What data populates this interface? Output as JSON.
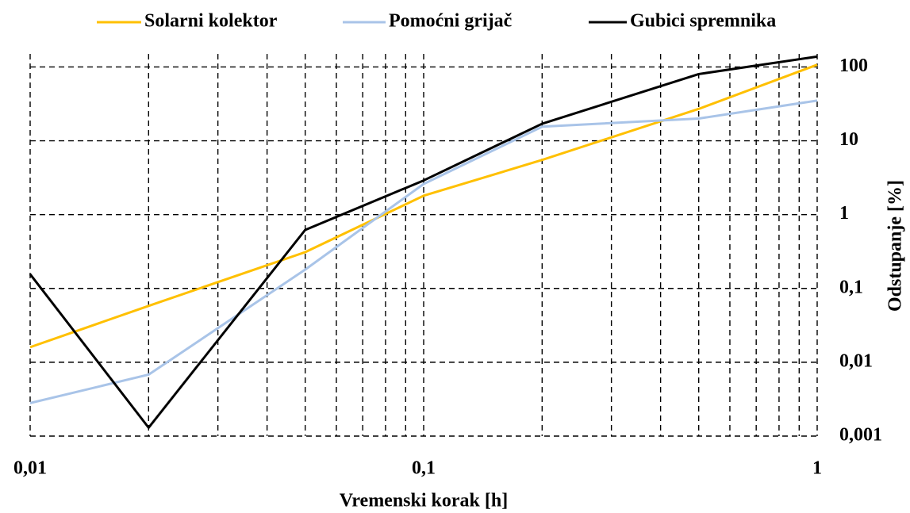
{
  "chart_data": {
    "type": "line",
    "x_label": "Vremenski korak [h]",
    "y_label": "Odstupanje [%]",
    "x": [
      0.01,
      0.02,
      0.05,
      0.1,
      0.2,
      0.5,
      1
    ],
    "series": [
      {
        "name": "Solarni kolektor",
        "color": "#ffc000",
        "values": [
          0.016,
          0.058,
          0.31,
          1.8,
          5.5,
          27,
          107
        ]
      },
      {
        "name": "Pomoćni grijač",
        "color": "#a9c4e8",
        "values": [
          0.0028,
          0.0068,
          0.18,
          2.6,
          15.5,
          20,
          35
        ]
      },
      {
        "name": "Gubici spremnika",
        "color": "#000000",
        "values": [
          0.156,
          0.0013,
          0.62,
          2.9,
          17,
          80,
          138
        ]
      }
    ],
    "x_log": true,
    "y_log": true,
    "xlim": [
      0.01,
      1
    ],
    "xticks": [
      {
        "value": 0.01,
        "label": "0,01"
      },
      {
        "value": 0.1,
        "label": "0,1"
      },
      1
    ],
    "ylim": [
      0.001,
      150
    ],
    "yticks": [
      {
        "value": 0.001,
        "label": "0,001"
      },
      {
        "value": 0.01,
        "label": "0,01"
      },
      {
        "value": 0.1,
        "label": "0,1"
      },
      1,
      10,
      100
    ],
    "grid": true,
    "x_minor_grid": true,
    "legend": "top",
    "y_axis_side": "right"
  }
}
